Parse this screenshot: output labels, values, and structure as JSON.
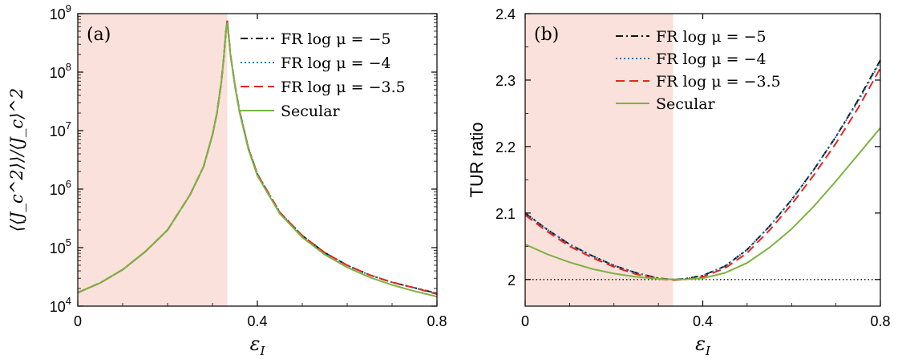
{
  "chart_data": [
    {
      "type": "line",
      "panel_label": "(a)",
      "xlabel": "ε",
      "xlabel_sub": "I",
      "ylabel": "⟨⟨J_c^2⟩⟩/⟨J_c⟩^2",
      "xlim": [
        0,
        0.8
      ],
      "ylim": [
        10000,
        1000000000
      ],
      "yscale": "log",
      "x_ticks": [
        "0",
        "0.4",
        "0.8"
      ],
      "y_ticks": [
        {
          "base": "10",
          "exp": "4"
        },
        {
          "base": "10",
          "exp": "5"
        },
        {
          "base": "10",
          "exp": "6"
        },
        {
          "base": "10",
          "exp": "7"
        },
        {
          "base": "10",
          "exp": "8"
        },
        {
          "base": "10",
          "exp": "9"
        }
      ],
      "shaded_region": [
        0,
        0.333
      ],
      "legend_position": "top-right",
      "series": [
        {
          "name": "FR log μ = −5",
          "color": "#111111",
          "dash": "dashdot",
          "x": [
            0,
            0.05,
            0.1,
            0.15,
            0.2,
            0.25,
            0.28,
            0.3,
            0.31,
            0.32,
            0.325,
            0.33,
            0.333,
            0.34,
            0.35,
            0.36,
            0.38,
            0.4,
            0.45,
            0.5,
            0.55,
            0.6,
            0.65,
            0.7,
            0.75,
            0.8
          ],
          "y": [
            17000,
            25000,
            42000,
            85000,
            200000,
            800000,
            2400000,
            8500000,
            20000000,
            70000000,
            170000000,
            500000000,
            750000000,
            200000000,
            60000000,
            22000000,
            5000000,
            1800000,
            400000,
            160000,
            82000,
            50000,
            34000,
            25500,
            20500,
            16500
          ]
        },
        {
          "name": "FR log μ = −4",
          "color": "#1f77b4",
          "dash": "dotted",
          "x": [
            0,
            0.05,
            0.1,
            0.15,
            0.2,
            0.25,
            0.28,
            0.3,
            0.31,
            0.32,
            0.325,
            0.33,
            0.333,
            0.34,
            0.35,
            0.36,
            0.38,
            0.4,
            0.45,
            0.5,
            0.55,
            0.6,
            0.65,
            0.7,
            0.75,
            0.8
          ],
          "y": [
            17000,
            25000,
            42000,
            85000,
            200000,
            800000,
            2400000,
            8500000,
            20000000,
            70000000,
            170000000,
            500000000,
            750000000,
            200000000,
            60000000,
            22000000,
            5000000,
            1800000,
            400000,
            160000,
            82000,
            50000,
            34000,
            25500,
            20500,
            16500
          ]
        },
        {
          "name": "FR log μ = −3.5",
          "color": "#e8241f",
          "dash": "dashed",
          "x": [
            0,
            0.05,
            0.1,
            0.15,
            0.2,
            0.25,
            0.28,
            0.3,
            0.31,
            0.32,
            0.325,
            0.33,
            0.333,
            0.34,
            0.35,
            0.36,
            0.38,
            0.4,
            0.45,
            0.5,
            0.55,
            0.6,
            0.65,
            0.7,
            0.75,
            0.8
          ],
          "y": [
            17000,
            25000,
            42000,
            85000,
            200000,
            800000,
            2400000,
            8500000,
            20000000,
            70000000,
            170000000,
            500000000,
            760000000,
            200000000,
            60000000,
            22000000,
            5000000,
            1800000,
            400000,
            160000,
            82000,
            50000,
            34000,
            25500,
            20500,
            16000
          ]
        },
        {
          "name": "Secular",
          "color": "#7cb342",
          "dash": "solid",
          "x": [
            0,
            0.05,
            0.1,
            0.15,
            0.2,
            0.25,
            0.28,
            0.3,
            0.31,
            0.32,
            0.325,
            0.33,
            0.333,
            0.34,
            0.35,
            0.36,
            0.38,
            0.4,
            0.45,
            0.5,
            0.55,
            0.6,
            0.65,
            0.7,
            0.75,
            0.8
          ],
          "y": [
            17000,
            25000,
            42000,
            85000,
            200000,
            800000,
            2400000,
            8500000,
            20000000,
            70000000,
            170000000,
            500000000,
            700000000,
            200000000,
            58000000,
            21000000,
            4800000,
            1700000,
            380000,
            150000,
            76000,
            46000,
            31000,
            23000,
            18000,
            14500
          ]
        }
      ]
    },
    {
      "type": "line",
      "panel_label": "(b)",
      "xlabel": "ε",
      "xlabel_sub": "I",
      "ylabel": "TUR ratio",
      "xlim": [
        0,
        0.8
      ],
      "ylim": [
        1.96,
        2.4
      ],
      "yscale": "linear",
      "x_ticks": [
        "0",
        "0.4",
        "0.8"
      ],
      "y_ticks": [
        "2",
        "2.1",
        "2.2",
        "2.3",
        "2.4"
      ],
      "shaded_region": [
        0,
        0.333
      ],
      "reference_line": 2,
      "legend_position": "top-left",
      "series": [
        {
          "name": "FR log μ = −5",
          "color": "#111111",
          "dash": "dashdot",
          "x": [
            0,
            0.05,
            0.1,
            0.15,
            0.2,
            0.25,
            0.3,
            0.333,
            0.36,
            0.4,
            0.45,
            0.5,
            0.55,
            0.6,
            0.65,
            0.7,
            0.75,
            0.8
          ],
          "y": [
            2.1,
            2.075,
            2.053,
            2.036,
            2.021,
            2.01,
            2.002,
            2.0,
            2.001,
            2.006,
            2.02,
            2.045,
            2.08,
            2.12,
            2.165,
            2.215,
            2.27,
            2.33
          ]
        },
        {
          "name": "FR log μ = −4",
          "color": "#1f77b4",
          "dash": "dotted",
          "x": [
            0,
            0.05,
            0.1,
            0.15,
            0.2,
            0.25,
            0.3,
            0.333,
            0.36,
            0.4,
            0.45,
            0.5,
            0.55,
            0.6,
            0.65,
            0.7,
            0.75,
            0.8
          ],
          "y": [
            2.1,
            2.075,
            2.053,
            2.036,
            2.021,
            2.01,
            2.002,
            2.0,
            2.001,
            2.006,
            2.02,
            2.045,
            2.08,
            2.12,
            2.165,
            2.215,
            2.268,
            2.328
          ]
        },
        {
          "name": "FR log μ = −3.5",
          "color": "#e8241f",
          "dash": "dashed",
          "x": [
            0,
            0.05,
            0.1,
            0.15,
            0.2,
            0.25,
            0.3,
            0.333,
            0.36,
            0.4,
            0.45,
            0.5,
            0.55,
            0.6,
            0.65,
            0.7,
            0.75,
            0.8
          ],
          "y": [
            2.097,
            2.072,
            2.05,
            2.033,
            2.019,
            2.008,
            2.001,
            1.999,
            2.0,
            2.004,
            2.017,
            2.04,
            2.074,
            2.113,
            2.157,
            2.205,
            2.258,
            2.318
          ]
        },
        {
          "name": "Secular",
          "color": "#7cb342",
          "dash": "solid",
          "x": [
            0,
            0.05,
            0.1,
            0.15,
            0.2,
            0.25,
            0.3,
            0.333,
            0.36,
            0.4,
            0.45,
            0.5,
            0.55,
            0.6,
            0.65,
            0.7,
            0.75,
            0.8
          ],
          "y": [
            2.053,
            2.038,
            2.026,
            2.016,
            2.009,
            2.004,
            2.001,
            2.0,
            2.0,
            2.002,
            2.01,
            2.025,
            2.048,
            2.076,
            2.11,
            2.148,
            2.188,
            2.228
          ]
        }
      ]
    }
  ]
}
